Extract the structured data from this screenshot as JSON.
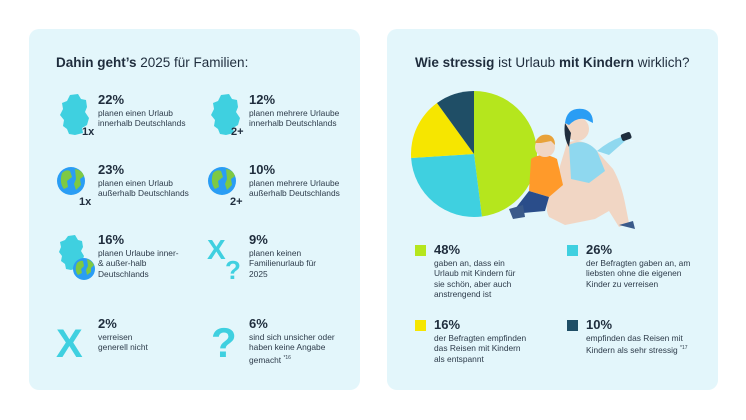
{
  "left": {
    "title_bold": "Dahin geht’s",
    "title_rest": " 2025 für Familien:",
    "stats": [
      {
        "pct": "22%",
        "desc": "planen einen Urlaub innerhalb Deutschlands",
        "icon": "germany-map-icon",
        "badge": "1x"
      },
      {
        "pct": "12%",
        "desc": "planen mehrere Urlaube innerhalb Deutschlands",
        "icon": "germany-map-icon",
        "badge": "2+"
      },
      {
        "pct": "23%",
        "desc": "planen einen Urlaub außerhalb Deutschlands",
        "icon": "globe-icon",
        "badge": "1x"
      },
      {
        "pct": "10%",
        "desc": "planen mehrere Urlaube außerhalb Deutschlands",
        "icon": "globe-icon",
        "badge": "2+"
      },
      {
        "pct": "16%",
        "desc": "planen Urlaube inner- & außer-halb Deutschlands",
        "icon": "germany-and-globe-icon",
        "badge": ""
      },
      {
        "pct": "9%",
        "desc": "planen keinen Familienurlaub für 2025",
        "icon": "x-question-icon",
        "badge": ""
      },
      {
        "pct": "2%",
        "desc": "verreisen generell nicht",
        "icon": "x-icon",
        "badge": ""
      },
      {
        "pct": "6%",
        "desc": "sind sich unsicher oder haben keine Angabe gemacht",
        "icon": "question-icon",
        "badge": "",
        "footnote": "*16"
      }
    ]
  },
  "right": {
    "title_bold1": "Wie stressig",
    "title_mid": " ist Urlaub ",
    "title_bold2": "mit Kindern",
    "title_rest": " wirklich?",
    "illustration": "mother-child-selfie-illustration"
  },
  "chart_data": {
    "type": "pie",
    "title": "Wie stressig ist Urlaub mit Kindern wirklich?",
    "slices": [
      {
        "pct": "48%",
        "value": 48,
        "color": "#b5e61d",
        "desc": "gaben an, dass ein Urlaub mit Kindern für sie schön, aber auch anstrengend ist",
        "footnote": ""
      },
      {
        "pct": "26%",
        "value": 26,
        "color": "#3fd0e0",
        "desc": "der Befragten gaben an, am liebsten ohne die eigenen Kinder zu verreisen",
        "footnote": ""
      },
      {
        "pct": "16%",
        "value": 16,
        "color": "#f6e600",
        "desc": "der Befragten empfinden das Reisen mit Kindern als entspannt",
        "footnote": ""
      },
      {
        "pct": "10%",
        "value": 10,
        "color": "#1f4e66",
        "desc": "empfinden das Reisen mit Kindern als sehr stressig",
        "footnote": "*17"
      }
    ]
  },
  "colors": {
    "panel": "#e3f6fb",
    "cyan": "#3fd0e0",
    "dark": "#1f2d3d",
    "ocean": "#2a9df4",
    "land": "#7ec943"
  }
}
